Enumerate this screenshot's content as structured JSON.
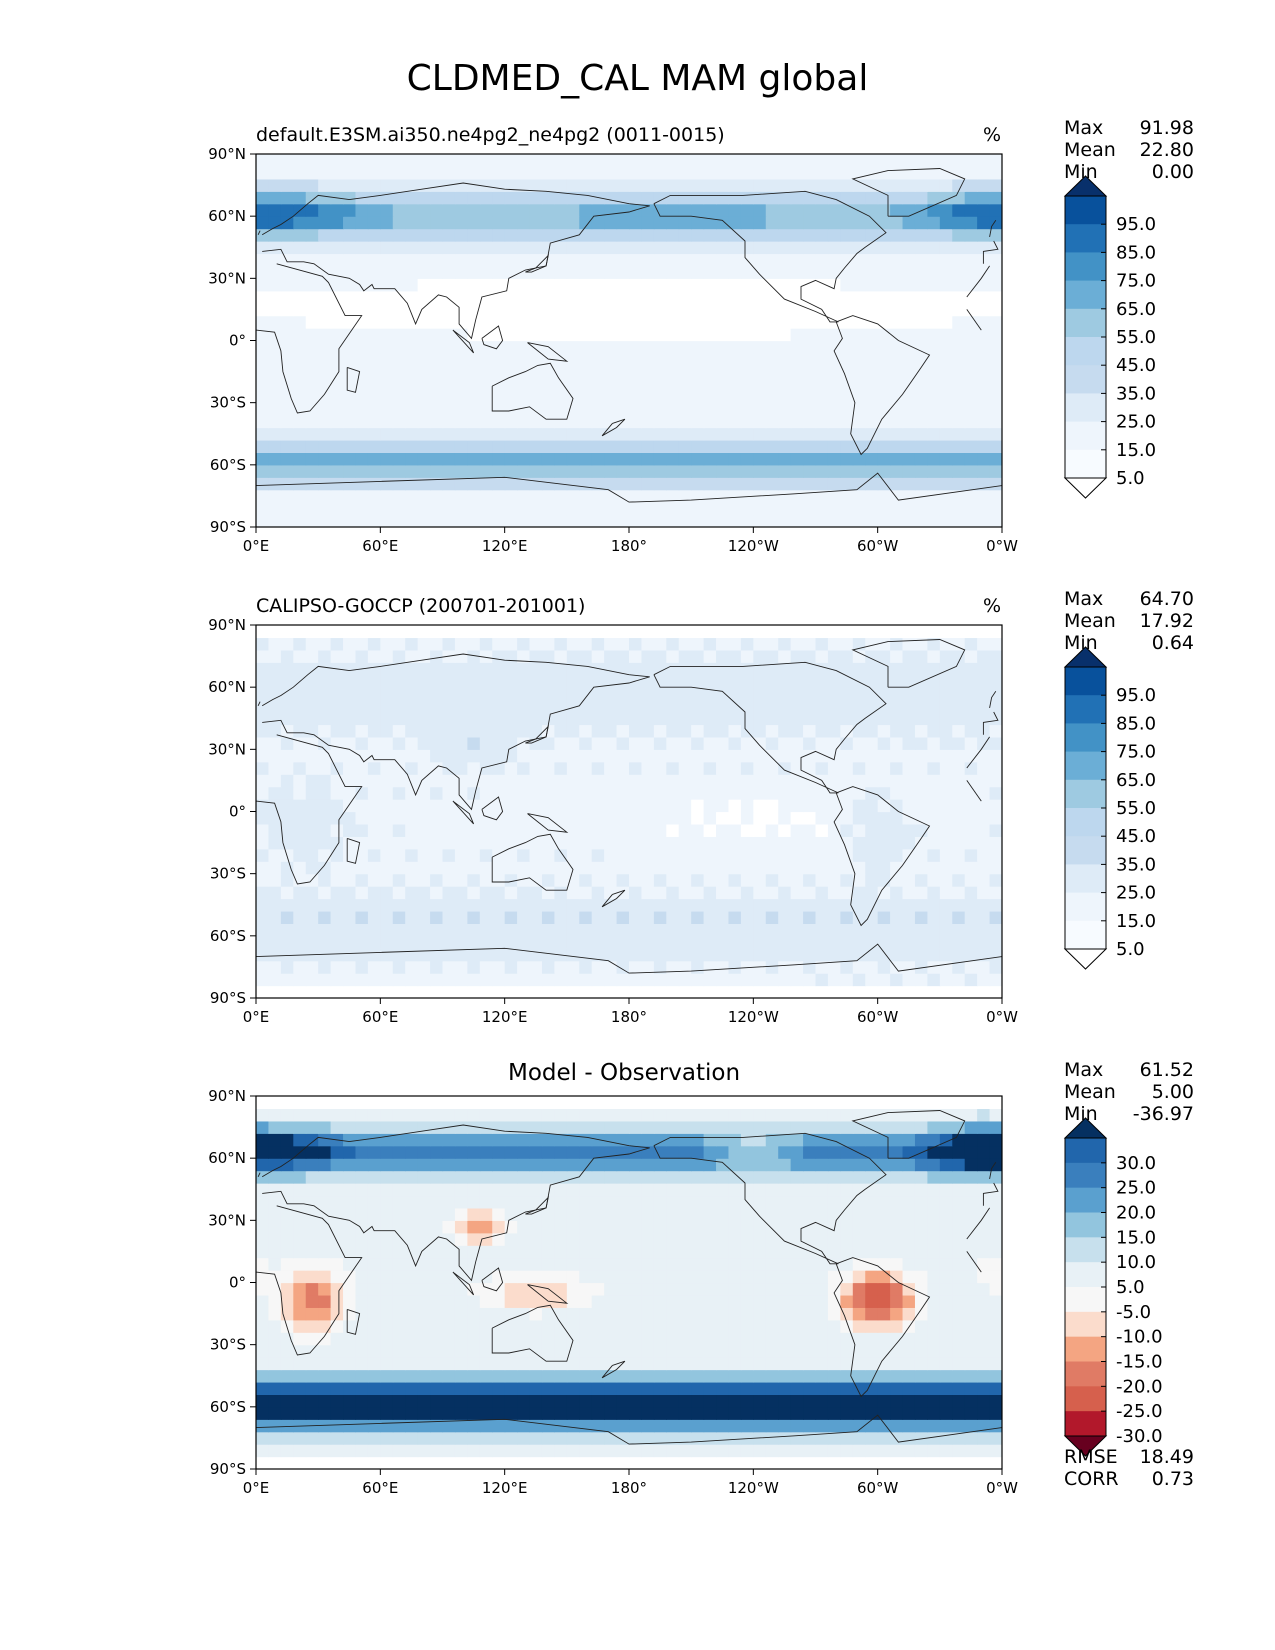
{
  "figure": {
    "title": "CLDMED_CAL MAM global"
  },
  "chart_data": [
    {
      "type": "heatmap",
      "title": "default.E3SM.ai350.ne4pg2_ne4pg2 (0011-0015)",
      "units": "%",
      "x_ticks": [
        "0°E",
        "60°E",
        "120°E",
        "180°",
        "120°W",
        "60°W",
        "0°W"
      ],
      "y_ticks": [
        "90°N",
        "60°N",
        "30°N",
        "0°",
        "30°S",
        "60°S",
        "90°S"
      ],
      "xlim": [
        0,
        360
      ],
      "ylim": [
        -90,
        90
      ],
      "stats": {
        "max_label": "Max",
        "max": "91.98",
        "mean_label": "Mean",
        "mean": "22.80",
        "min_label": "Min",
        "min": "0.00"
      },
      "colorbar": {
        "levels": [
          "95.0",
          "85.0",
          "75.0",
          "65.0",
          "55.0",
          "45.0",
          "35.0",
          "25.0",
          "15.0",
          "5.0"
        ],
        "colors": [
          "#08306b",
          "#08519c",
          "#2171b5",
          "#4292c6",
          "#6baed6",
          "#9ecae1",
          "#bdd7ee",
          "#c6dbef",
          "#deebf7",
          "#eef5fc",
          "#f7fbff",
          "#ffffff"
        ]
      }
    },
    {
      "type": "heatmap",
      "title": "CALIPSO-GOCCP (200701-201001)",
      "units": "%",
      "x_ticks": [
        "0°E",
        "60°E",
        "120°E",
        "180°",
        "120°W",
        "60°W",
        "0°W"
      ],
      "y_ticks": [
        "90°N",
        "60°N",
        "30°N",
        "0°",
        "30°S",
        "60°S",
        "90°S"
      ],
      "xlim": [
        0,
        360
      ],
      "ylim": [
        -90,
        90
      ],
      "stats": {
        "max_label": "Max",
        "max": "64.70",
        "mean_label": "Mean",
        "mean": "17.92",
        "min_label": "Min",
        "min": "0.64"
      },
      "colorbar": {
        "levels": [
          "95.0",
          "85.0",
          "75.0",
          "65.0",
          "55.0",
          "45.0",
          "35.0",
          "25.0",
          "15.0",
          "5.0"
        ],
        "colors": [
          "#08306b",
          "#08519c",
          "#2171b5",
          "#4292c6",
          "#6baed6",
          "#9ecae1",
          "#bdd7ee",
          "#c6dbef",
          "#deebf7",
          "#eef5fc",
          "#f7fbff",
          "#ffffff"
        ]
      }
    },
    {
      "type": "heatmap",
      "title": "Model - Observation",
      "units": "",
      "x_ticks": [
        "0°E",
        "60°E",
        "120°E",
        "180°",
        "120°W",
        "60°W",
        "0°W"
      ],
      "y_ticks": [
        "90°N",
        "60°N",
        "30°N",
        "0°",
        "30°S",
        "60°S",
        "90°S"
      ],
      "xlim": [
        0,
        360
      ],
      "ylim": [
        -90,
        90
      ],
      "stats": {
        "max_label": "Max",
        "max": "61.52",
        "mean_label": "Mean",
        "mean": "5.00",
        "min_label": "Min",
        "min": "-36.97"
      },
      "extra_stats": {
        "rmse_label": "RMSE",
        "rmse": "18.49",
        "corr_label": "CORR",
        "corr": "0.73"
      },
      "colorbar": {
        "levels": [
          "30.0",
          "25.0",
          "20.0",
          "15.0",
          "10.0",
          "5.0",
          "-5.0",
          "-10.0",
          "-15.0",
          "-20.0",
          "-25.0",
          "-30.0"
        ],
        "colors": [
          "#053061",
          "#2166ac",
          "#3a7fbd",
          "#5aa0cf",
          "#92c5de",
          "#c7e0ed",
          "#e8f1f6",
          "#f7f7f7",
          "#fbdccc",
          "#f4a582",
          "#e07b65",
          "#d6604d",
          "#b2182b",
          "#67001f"
        ]
      }
    }
  ]
}
